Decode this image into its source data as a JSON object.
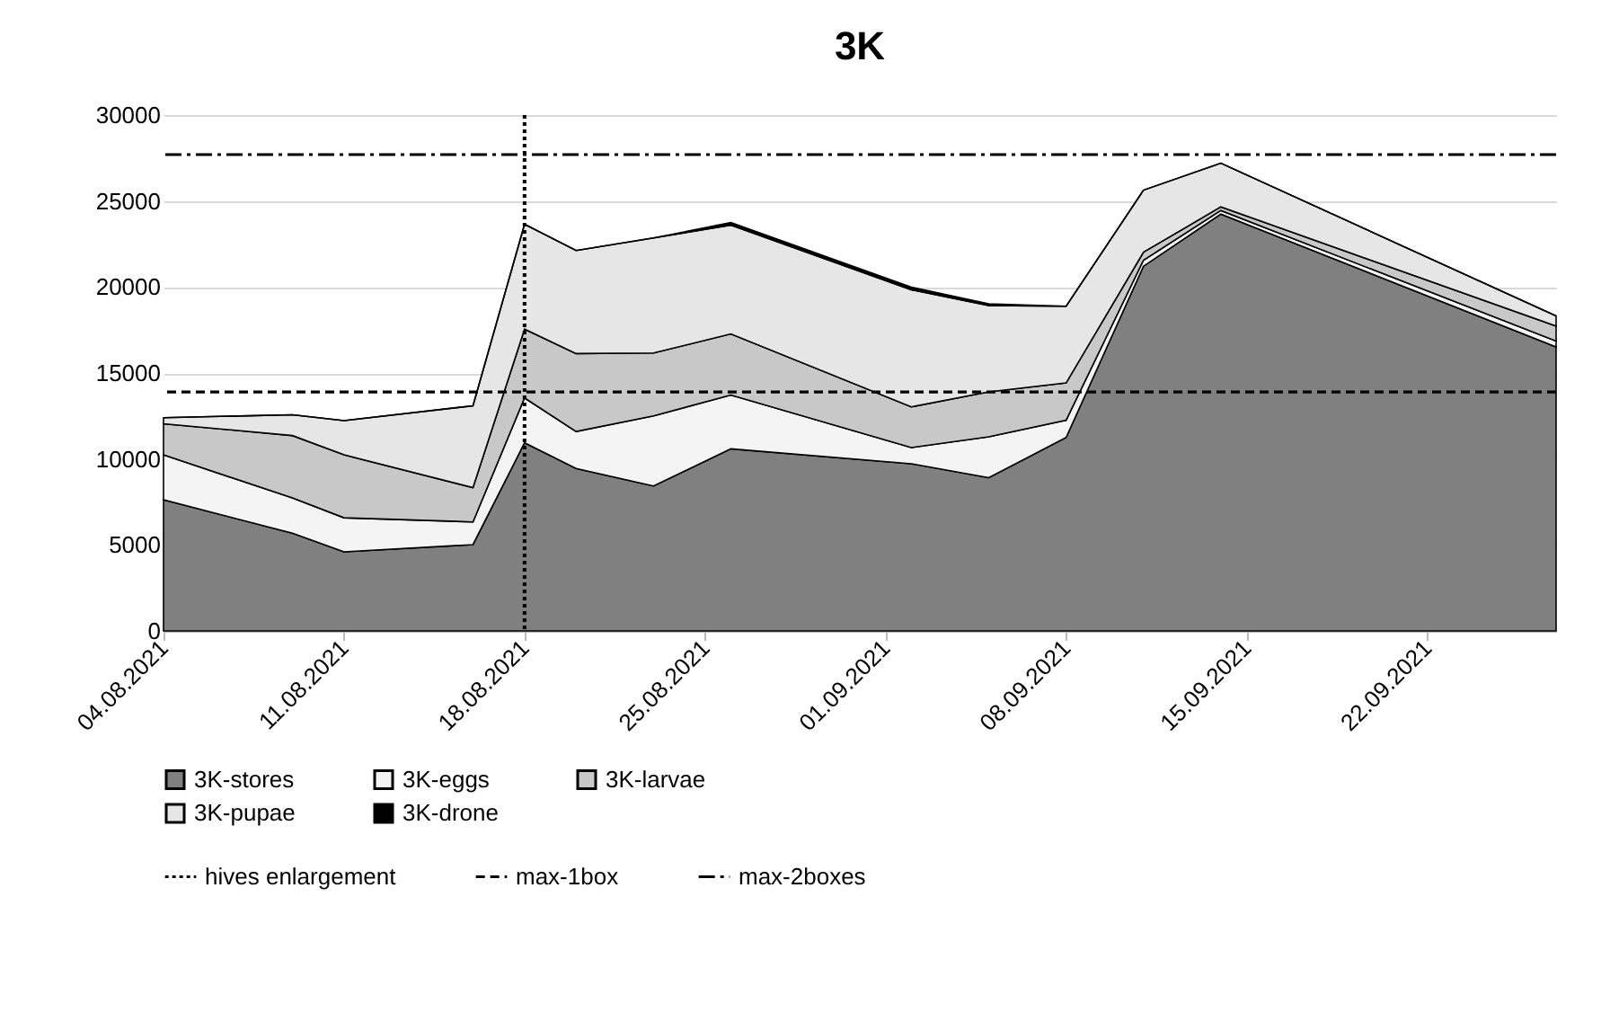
{
  "chart_data": {
    "type": "area",
    "title": "3K",
    "stacked": true,
    "x": [
      "2021-08-04",
      "2021-08-09",
      "2021-08-11",
      "2021-08-16",
      "2021-08-18",
      "2021-08-20",
      "2021-08-23",
      "2021-08-26",
      "2021-09-02",
      "2021-09-05",
      "2021-09-08",
      "2021-09-11",
      "2021-09-14",
      "2021-09-27"
    ],
    "series": [
      {
        "name": "3K-stores",
        "color": "#808080",
        "values": [
          7630,
          5680,
          4600,
          5020,
          10940,
          9450,
          8430,
          10590,
          9720,
          8910,
          11250,
          21210,
          24240,
          16510
        ]
      },
      {
        "name": "3K-eggs",
        "color": "#f4f4f4",
        "values": [
          2610,
          2050,
          1980,
          1320,
          2610,
          2150,
          4070,
          3130,
          940,
          2380,
          1000,
          350,
          210,
          350
        ]
      },
      {
        "name": "3K-larvae",
        "color": "#c8c8c8",
        "values": [
          1810,
          3630,
          3660,
          1990,
          4000,
          4530,
          3660,
          3550,
          2370,
          2610,
          2170,
          460,
          210,
          870
        ]
      },
      {
        "name": "3K-pupae",
        "color": "#e6e6e6",
        "values": [
          350,
          1210,
          1990,
          4760,
          6100,
          5990,
          6690,
          6330,
          6810,
          5020,
          4460,
          3610,
          2540,
          590
        ]
      },
      {
        "name": "3K-drone",
        "color": "#000000",
        "values": [
          0,
          0,
          0,
          0,
          0,
          0,
          0,
          150,
          150,
          100,
          0,
          0,
          0,
          0
        ]
      }
    ],
    "xlim": [
      "2021-08-04",
      "2021-09-27"
    ],
    "xticks": [
      {
        "value": "2021-08-04",
        "label": "04.08.2021"
      },
      {
        "value": "2021-08-11",
        "label": "11.08.2021"
      },
      {
        "value": "2021-08-18",
        "label": "18.08.2021"
      },
      {
        "value": "2021-08-25",
        "label": "25.08.2021"
      },
      {
        "value": "2021-09-01",
        "label": "01.09.2021"
      },
      {
        "value": "2021-09-08",
        "label": "08.09.2021"
      },
      {
        "value": "2021-09-15",
        "label": "15.09.2021"
      },
      {
        "value": "2021-09-22",
        "label": "22.09.2021"
      }
    ],
    "ylim": [
      0,
      30000
    ],
    "yticks": [
      0,
      5000,
      10000,
      15000,
      20000,
      25000,
      30000
    ],
    "ref_lines": [
      {
        "axis": "x",
        "value": "2021-08-18",
        "label": "hives enlargement",
        "color": "#000000",
        "line_style": "dotted"
      },
      {
        "axis": "y",
        "value": 13900,
        "label": "max-1box",
        "color": "#000000",
        "line_style": "dashed"
      },
      {
        "axis": "y",
        "value": 27700,
        "label": "max-2boxes",
        "color": "#000000",
        "line_style": "dashdot"
      }
    ],
    "grid": "y",
    "legend": "bottom"
  }
}
